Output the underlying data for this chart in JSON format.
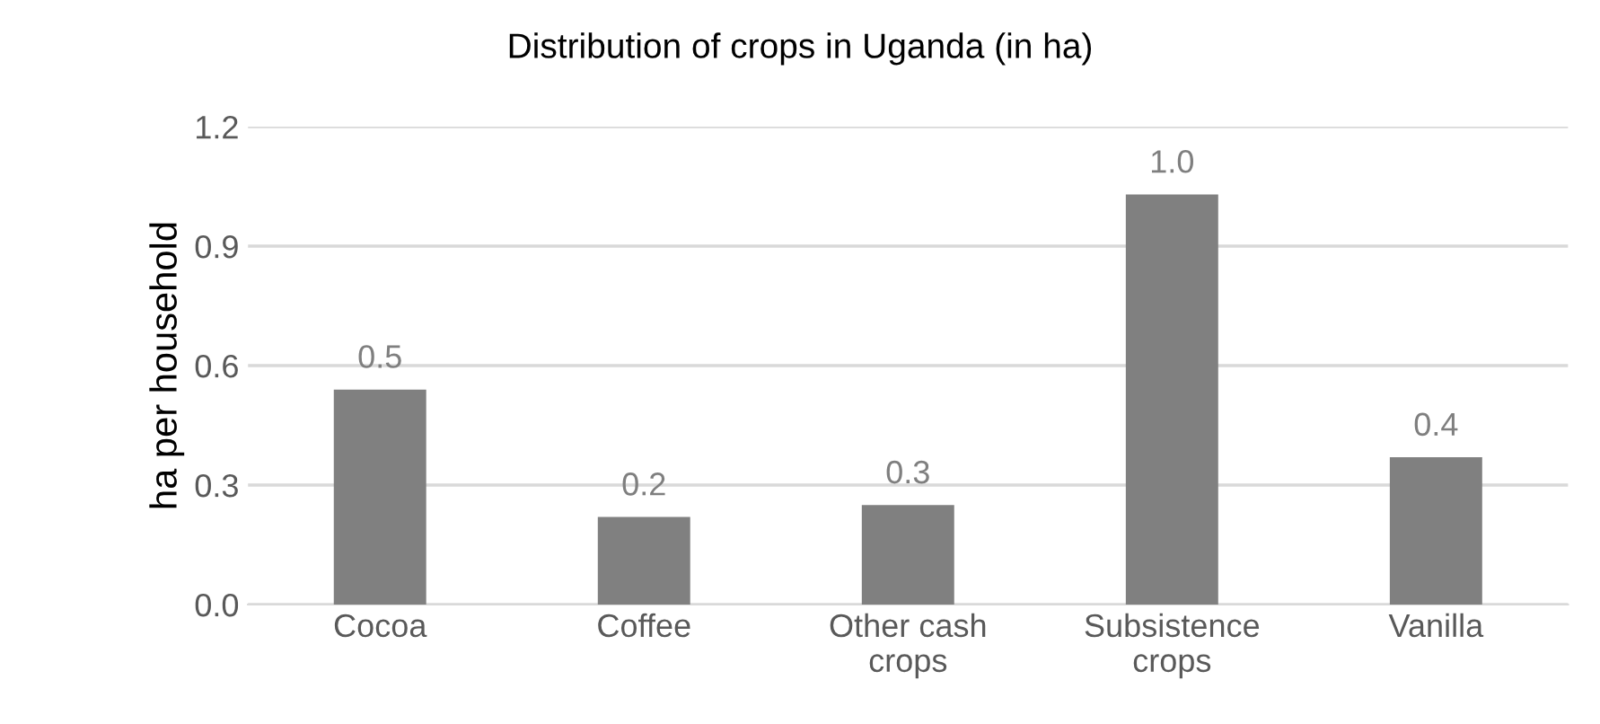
{
  "chart_data": {
    "type": "bar",
    "title": "Distribution of crops in Uganda (in ha)",
    "ylabel": "ha per household",
    "categories": [
      "Cocoa",
      "Coffee",
      "Other cash\ncrops",
      "Subsistence\ncrops",
      "Vanilla"
    ],
    "values": [
      0.54,
      0.22,
      0.25,
      1.03,
      0.37
    ],
    "value_labels": [
      "0.5",
      "0.2",
      "0.3",
      "1.0",
      "0.4"
    ],
    "color": "#808080",
    "ylim": [
      0,
      1.2
    ],
    "yticks": [
      {
        "value": 0,
        "label": "0.0"
      },
      0.3,
      0.6,
      0.9,
      1.2
    ],
    "grid": "y"
  }
}
